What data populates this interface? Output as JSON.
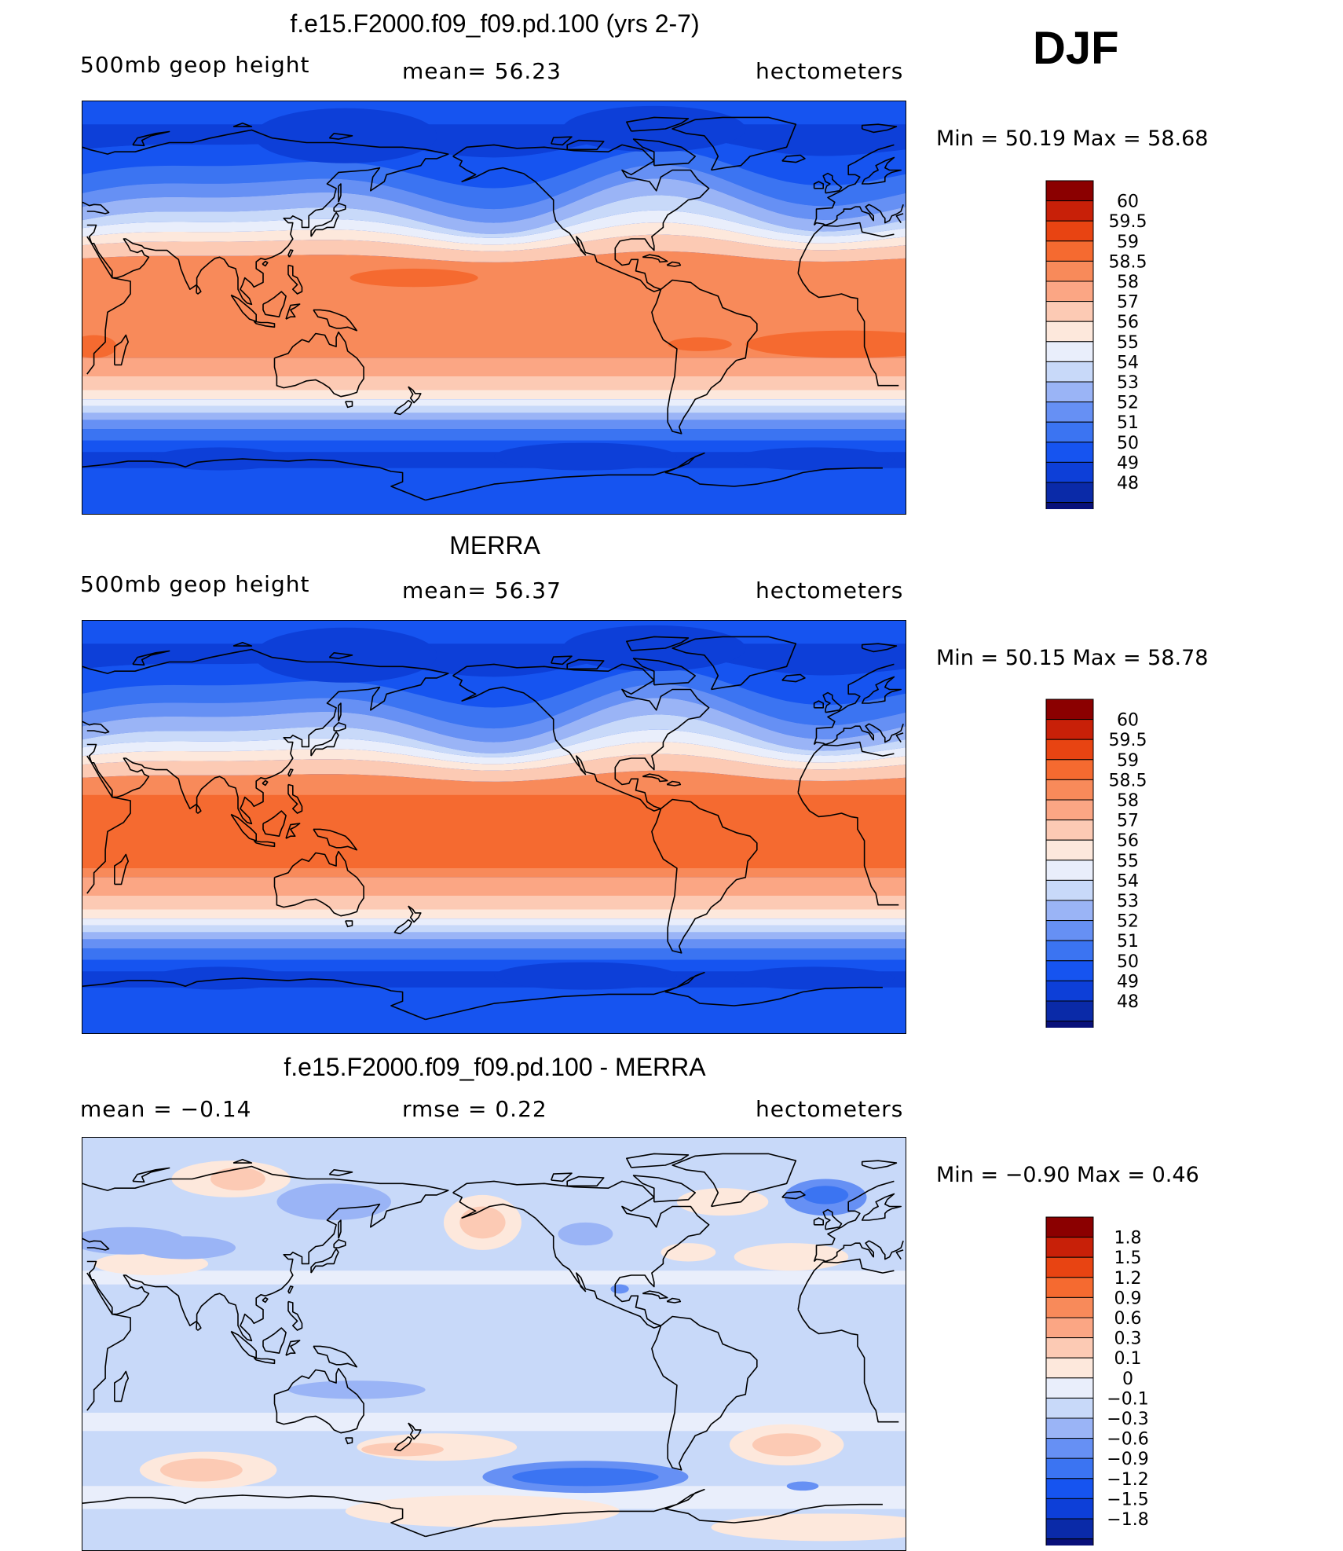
{
  "season": "DJF",
  "colors": {
    "full_scale": [
      "#08107a",
      "#0a2aa8",
      "#0d3fd8",
      "#1654f0",
      "#3b74f2",
      "#6690f4",
      "#9ab4f6",
      "#c8d9f9",
      "#e9eefb",
      "#fde8dc",
      "#fccab4",
      "#fba684",
      "#f88a5a",
      "#f56a30",
      "#e84412",
      "#c82008",
      "#8b0000"
    ],
    "diff_scale": [
      "#08107a",
      "#0a2aa8",
      "#0d3fd8",
      "#1654f0",
      "#3b74f2",
      "#6690f4",
      "#9ab4f6",
      "#c8d9f9",
      "#e9eefb",
      "#fde8dc",
      "#fccab4",
      "#fba684",
      "#f88a5a",
      "#f56a30",
      "#e84412",
      "#c82008",
      "#8b0000"
    ]
  },
  "panels": [
    {
      "id": "model",
      "title": "f.e15.F2000.f09_f09.pd.100 (yrs 2-7)",
      "left_label": "500mb  geop  height",
      "center_label": "mean=   56.23",
      "right_label": "hectometers",
      "min_max": "Min  =    50.19  Max  =    58.68",
      "legend_labels": [
        "60",
        "59.5",
        "59",
        "58.5",
        "58",
        "57",
        "56",
        "55",
        "54",
        "53",
        "52",
        "51",
        "50",
        "49",
        "48"
      ],
      "scale": "full",
      "pattern": "model"
    },
    {
      "id": "merra",
      "title": "MERRA",
      "left_label": "500mb  geop  height",
      "center_label": "mean=   56.37",
      "right_label": "hectometers",
      "min_max": "Min  =    50.15  Max  =    58.78",
      "legend_labels": [
        "60",
        "59.5",
        "59",
        "58.5",
        "58",
        "57",
        "56",
        "55",
        "54",
        "53",
        "52",
        "51",
        "50",
        "49",
        "48"
      ],
      "scale": "full",
      "pattern": "merra"
    },
    {
      "id": "diff",
      "title": "f.e15.F2000.f09_f09.pd.100 - MERRA",
      "left_label": "mean  =    −0.14",
      "center_label": "rmse  =     0.22",
      "right_label": "hectometers",
      "min_max": "Min  =    −0.90  Max  =      0.46",
      "legend_labels": [
        "1.8",
        "1.5",
        "1.2",
        "0.9",
        "0.6",
        "0.3",
        "0.1",
        "0",
        "−0.1",
        "−0.3",
        "−0.6",
        "−0.9",
        "−1.2",
        "−1.5",
        "−1.8"
      ],
      "scale": "diff",
      "pattern": "diff"
    }
  ]
}
